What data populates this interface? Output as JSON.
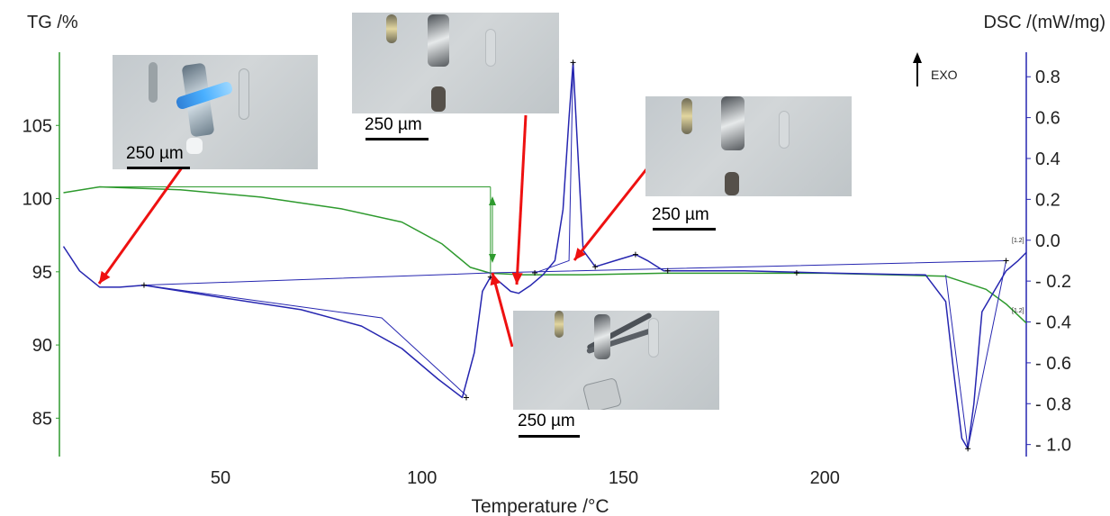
{
  "chart_data": {
    "type": "line",
    "xlabel": "Temperature /°C",
    "ylabel_left": "TG /%",
    "ylabel_right": "DSC /(mW/mg)",
    "xlim": [
      10,
      250
    ],
    "ylim_left": [
      82.5,
      110
    ],
    "ylim_right": [
      -1.05,
      0.92
    ],
    "x_ticks": [
      "50",
      "100",
      "150",
      "200"
    ],
    "y_ticks_left": [
      "85",
      "90",
      "95",
      "100",
      "105"
    ],
    "y_ticks_right": [
      "0.8",
      "0.6",
      "0.4",
      "0.2",
      "0.0",
      "- 0.2",
      "- 0.4",
      "- 0.6",
      "- 0.8",
      "- 1.0"
    ],
    "exo_label": "EXO",
    "curve_end_labels": [
      "[1.2]",
      "[1.2]"
    ],
    "series": [
      {
        "axis": "left",
        "color": "#2e9a2e",
        "x": [
          11,
          20,
          40,
          60,
          80,
          95,
          105,
          112,
          117,
          125,
          140,
          160,
          200,
          230,
          240,
          245,
          250
        ],
        "y": [
          100.4,
          100.8,
          100.6,
          100.1,
          99.3,
          98.4,
          96.9,
          95.3,
          94.9,
          94.8,
          94.8,
          94.9,
          94.9,
          94.7,
          93.8,
          92.8,
          91.5
        ]
      },
      {
        "axis": "right",
        "color": "#2626b0",
        "x": [
          11,
          15,
          20,
          25,
          31,
          50,
          70,
          85,
          95,
          104,
          110,
          113,
          115,
          117,
          119,
          122,
          124,
          127,
          130,
          133,
          135,
          136.5,
          137.5,
          138.5,
          140,
          143,
          148,
          153,
          156,
          160,
          170,
          180,
          200,
          225,
          230,
          232,
          234,
          235.5,
          237,
          239,
          245,
          248,
          250
        ],
        "y": [
          -0.03,
          -0.15,
          -0.23,
          -0.23,
          -0.22,
          -0.28,
          -0.34,
          -0.42,
          -0.53,
          -0.68,
          -0.77,
          -0.55,
          -0.25,
          -0.18,
          -0.2,
          -0.25,
          -0.26,
          -0.22,
          -0.17,
          -0.1,
          0.15,
          0.6,
          0.87,
          0.5,
          -0.05,
          -0.13,
          -0.1,
          -0.07,
          -0.1,
          -0.15,
          -0.15,
          -0.15,
          -0.16,
          -0.17,
          -0.3,
          -0.65,
          -0.97,
          -1.02,
          -0.8,
          -0.35,
          -0.15,
          -0.1,
          -0.06
        ]
      }
    ]
  },
  "insets": [
    {
      "scale_label": "250 µm"
    },
    {
      "scale_label": "250 µm"
    },
    {
      "scale_label": "250 µm"
    },
    {
      "scale_label": "250 µm"
    }
  ]
}
